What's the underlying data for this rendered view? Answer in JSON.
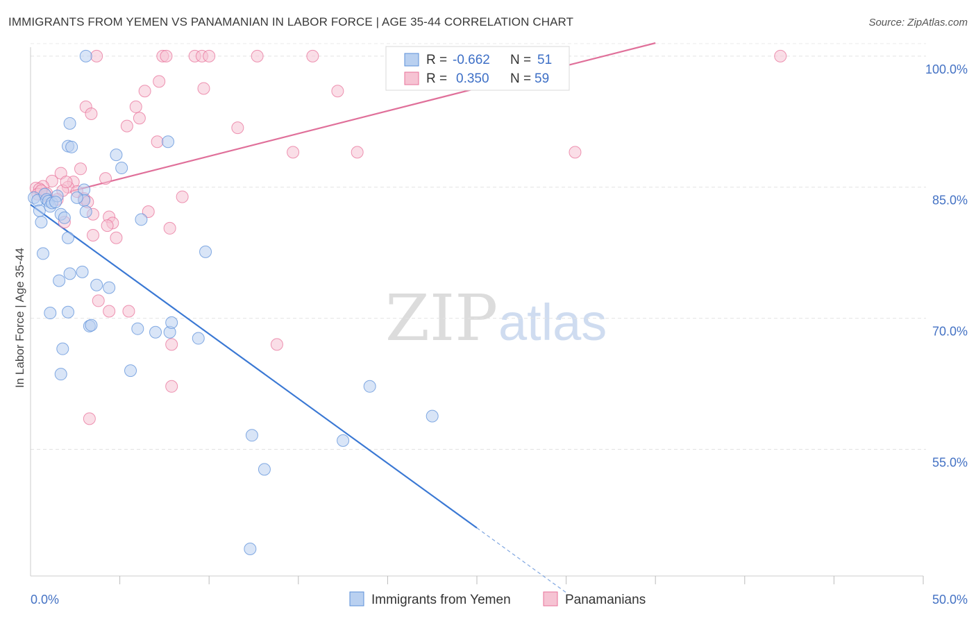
{
  "title": "IMMIGRANTS FROM YEMEN VS PANAMANIAN IN LABOR FORCE | AGE 35-44 CORRELATION CHART",
  "source": "Source: ZipAtlas.com",
  "watermark": {
    "zip": "ZIP",
    "atlas": "atlas"
  },
  "colors": {
    "blue": "#5b8fd9",
    "blue_fill": "#b9d0f0",
    "pink": "#e8729a",
    "pink_fill": "#f6c3d3",
    "tick_text": "#4472c4"
  },
  "legend": {
    "rows": [
      {
        "r_label": "R =",
        "r_value": "-0.662",
        "n_label": "N =",
        "n_value": "51"
      },
      {
        "r_label": "R =",
        "r_value": "0.350",
        "n_label": "N =",
        "n_value": "59"
      }
    ]
  },
  "chart_data": {
    "type": "scatter",
    "title": "IMMIGRANTS FROM YEMEN VS PANAMANIAN IN LABOR FORCE | AGE 35-44 CORRELATION CHART",
    "xlabel": "",
    "ylabel": "In Labor Force | Age 35-44",
    "xlim": [
      0,
      50
    ],
    "ylim": [
      40.5,
      101.5
    ],
    "x_tick_labels": [
      "0.0%",
      "50.0%"
    ],
    "y_ticks": [
      55,
      70,
      85,
      100
    ],
    "y_tick_labels": [
      "55.0%",
      "70.0%",
      "85.0%",
      "100.0%"
    ],
    "grid": true,
    "legend_position": "bottom",
    "series": [
      {
        "name": "Immigrants from Yemen",
        "color": "#5b8fd9",
        "r": -0.662,
        "n": 51,
        "trend": {
          "x0": 0,
          "y0": 83.0,
          "x1": 25.0,
          "y1": 46.0,
          "dashed_to_x": 30.0
        },
        "points": [
          [
            0.2,
            83.8
          ],
          [
            0.4,
            83.5
          ],
          [
            0.5,
            82.3
          ],
          [
            0.6,
            81.0
          ],
          [
            0.8,
            84.2
          ],
          [
            0.9,
            83.6
          ],
          [
            1.0,
            83.4
          ],
          [
            1.1,
            82.8
          ],
          [
            1.2,
            83.2
          ],
          [
            1.5,
            84.0
          ],
          [
            1.7,
            81.9
          ],
          [
            1.9,
            81.5
          ],
          [
            2.1,
            79.2
          ],
          [
            0.7,
            77.4
          ],
          [
            1.6,
            74.3
          ],
          [
            2.2,
            75.1
          ],
          [
            2.9,
            75.3
          ],
          [
            3.7,
            73.8
          ],
          [
            4.4,
            73.5
          ],
          [
            1.1,
            70.6
          ],
          [
            2.1,
            70.7
          ],
          [
            3.3,
            69.1
          ],
          [
            3.4,
            69.2
          ],
          [
            6.0,
            68.8
          ],
          [
            7.0,
            68.4
          ],
          [
            7.8,
            68.4
          ],
          [
            7.9,
            69.5
          ],
          [
            9.4,
            67.7
          ],
          [
            1.8,
            66.5
          ],
          [
            1.7,
            63.6
          ],
          [
            5.6,
            64.0
          ],
          [
            3.1,
            100.0
          ],
          [
            2.2,
            92.3
          ],
          [
            2.1,
            89.7
          ],
          [
            2.3,
            89.6
          ],
          [
            4.8,
            88.7
          ],
          [
            7.7,
            90.2
          ],
          [
            5.1,
            87.2
          ],
          [
            3.0,
            84.7
          ],
          [
            3.0,
            83.5
          ],
          [
            3.1,
            82.2
          ],
          [
            6.2,
            81.3
          ],
          [
            9.8,
            77.6
          ],
          [
            19.0,
            62.2
          ],
          [
            22.5,
            58.8
          ],
          [
            12.4,
            56.6
          ],
          [
            17.5,
            56.0
          ],
          [
            13.1,
            52.7
          ],
          [
            12.3,
            43.6
          ],
          [
            2.6,
            83.8
          ],
          [
            1.4,
            83.3
          ]
        ]
      },
      {
        "name": "Panamanians",
        "color": "#e8729a",
        "r": 0.35,
        "n": 59,
        "trend": {
          "x0": 2.2,
          "y0": 84.5,
          "x1": 35.0,
          "y1": 101.5
        },
        "points": [
          [
            3.7,
            100.0
          ],
          [
            7.4,
            100.0
          ],
          [
            7.6,
            100.0
          ],
          [
            9.2,
            100.0
          ],
          [
            9.6,
            100.0
          ],
          [
            10.0,
            100.0
          ],
          [
            12.7,
            100.0
          ],
          [
            15.8,
            100.0
          ],
          [
            42.0,
            100.0
          ],
          [
            7.2,
            97.1
          ],
          [
            6.4,
            96.0
          ],
          [
            9.7,
            96.3
          ],
          [
            17.2,
            96.0
          ],
          [
            3.1,
            94.2
          ],
          [
            5.9,
            94.2
          ],
          [
            3.4,
            93.4
          ],
          [
            6.1,
            92.9
          ],
          [
            5.4,
            92.0
          ],
          [
            11.6,
            91.8
          ],
          [
            7.1,
            90.2
          ],
          [
            14.7,
            89.0
          ],
          [
            18.3,
            89.0
          ],
          [
            30.5,
            89.0
          ],
          [
            2.8,
            87.1
          ],
          [
            1.7,
            86.6
          ],
          [
            4.2,
            86.0
          ],
          [
            1.2,
            85.7
          ],
          [
            2.4,
            85.6
          ],
          [
            0.7,
            85.1
          ],
          [
            2.1,
            85.0
          ],
          [
            0.3,
            84.9
          ],
          [
            0.5,
            84.8
          ],
          [
            1.8,
            84.6
          ],
          [
            2.6,
            84.5
          ],
          [
            0.4,
            84.2
          ],
          [
            0.9,
            84.0
          ],
          [
            3.0,
            83.7
          ],
          [
            3.2,
            83.3
          ],
          [
            8.5,
            83.9
          ],
          [
            6.6,
            82.2
          ],
          [
            3.5,
            81.9
          ],
          [
            4.4,
            81.6
          ],
          [
            4.6,
            80.9
          ],
          [
            3.5,
            79.5
          ],
          [
            4.8,
            79.2
          ],
          [
            7.8,
            80.3
          ],
          [
            1.9,
            81.0
          ],
          [
            3.8,
            72.0
          ],
          [
            4.4,
            70.8
          ],
          [
            5.5,
            70.8
          ],
          [
            7.9,
            67.0
          ],
          [
            13.8,
            67.0
          ],
          [
            7.9,
            62.2
          ],
          [
            3.3,
            58.5
          ],
          [
            1.5,
            83.6
          ],
          [
            0.9,
            84.3
          ],
          [
            2.0,
            85.6
          ],
          [
            4.3,
            80.6
          ],
          [
            0.6,
            84.6
          ]
        ]
      }
    ]
  }
}
